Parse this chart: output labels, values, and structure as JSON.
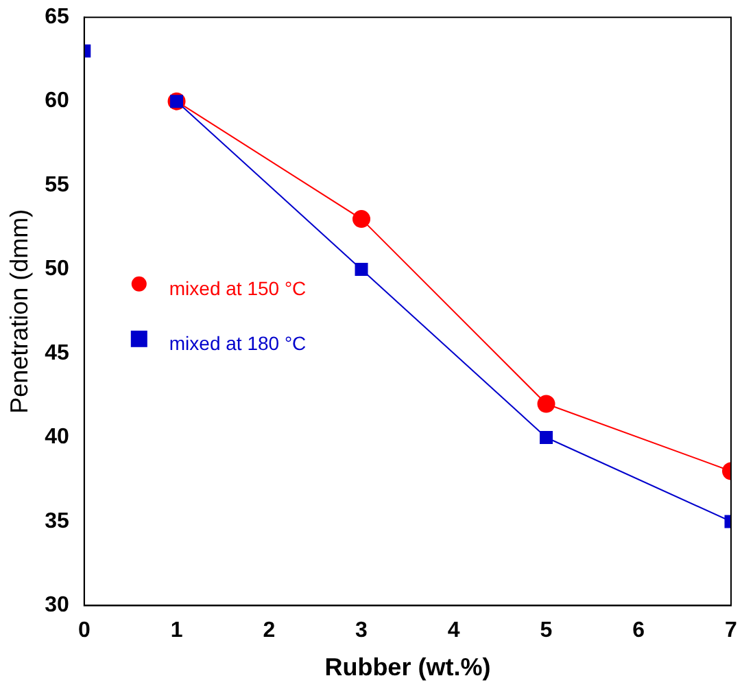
{
  "chart_data": {
    "type": "line",
    "xlabel": "Rubber (wt.%)",
    "ylabel": "Penetration (dmm)",
    "series": [
      {
        "name": "mixed at 150 °C",
        "color": "#ff0000",
        "marker": "circle",
        "x": [
          1,
          3,
          5,
          7
        ],
        "values": [
          60,
          53,
          42,
          38
        ]
      },
      {
        "name": "mixed at 180 °C",
        "color": "#0000cc",
        "marker": "square",
        "x": [
          1,
          3,
          5,
          7
        ],
        "values": [
          60,
          50,
          40,
          35
        ]
      },
      {
        "type": "scatter",
        "color": "#0000cc",
        "marker": "square",
        "x": [
          0
        ],
        "values": [
          63
        ]
      }
    ],
    "xlim": [
      0,
      7
    ],
    "xticks": [
      0,
      1,
      2,
      3,
      4,
      5,
      6,
      7
    ],
    "ylim": [
      30,
      65
    ],
    "yticks": [
      30,
      35,
      40,
      45,
      50,
      55,
      60,
      65
    ],
    "grid": false,
    "legend": "left"
  }
}
